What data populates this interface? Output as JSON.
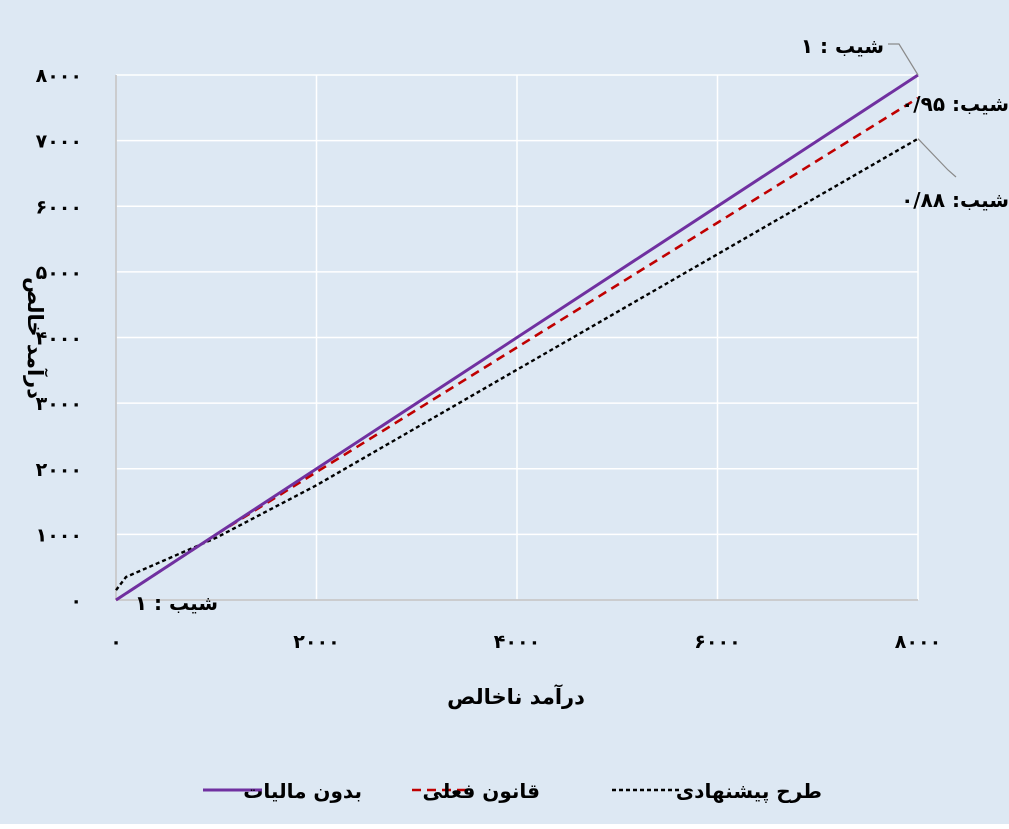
{
  "chart_data": {
    "type": "line",
    "xlabel": "درآمد ناخالص",
    "ylabel": "درآمد خالص",
    "xlim": [
      0,
      8000
    ],
    "ylim": [
      0,
      8000
    ],
    "x_ticks": [
      0,
      2000,
      4000,
      6000,
      8000
    ],
    "y_ticks": [
      0,
      1000,
      2000,
      3000,
      4000,
      5000,
      6000,
      7000,
      8000
    ],
    "x_tick_labels": [
      "۰",
      "۲۰۰۰",
      "۴۰۰۰",
      "۶۰۰۰",
      "۸۰۰۰"
    ],
    "y_tick_labels": [
      "۰",
      "۱۰۰۰",
      "۲۰۰۰",
      "۳۰۰۰",
      "۴۰۰۰",
      "۵۰۰۰",
      "۶۰۰۰",
      "۷۰۰۰",
      "۸۰۰۰"
    ],
    "grid": true,
    "legend_position": "bottom",
    "series": [
      {
        "name": "بدون مالیات",
        "color": "#7030a0",
        "style": "solid",
        "x": [
          0,
          8000
        ],
        "y": [
          0,
          8000
        ]
      },
      {
        "name": "قانون فعلی",
        "color": "#c00000",
        "style": "dashed",
        "x": [
          0,
          1000,
          8000
        ],
        "y": [
          0,
          1000,
          7650
        ]
      },
      {
        "name": "طرح پیشنهادی",
        "color": "#000000",
        "style": "dotted",
        "x": [
          0,
          100,
          1000,
          2000,
          8000
        ],
        "y": [
          150,
          350,
          950,
          1750,
          7030
        ]
      }
    ],
    "annotations": [
      {
        "text": "شیب : ۱",
        "anchor": "top-right",
        "series": "بدون مالیات"
      },
      {
        "text": "شیب: ۰/۹۵",
        "anchor": "right",
        "series": "قانون فعلی"
      },
      {
        "text": "شیب: ۰/۸۸",
        "anchor": "right",
        "series": "طرح پیشنهادی"
      },
      {
        "text": "شیب : ۱",
        "anchor": "origin",
        "series": "بدون مالیات"
      }
    ],
    "colors": {
      "background": "#dde8f3",
      "grid": "#ffffff",
      "leader": "#8a8a8a"
    }
  }
}
